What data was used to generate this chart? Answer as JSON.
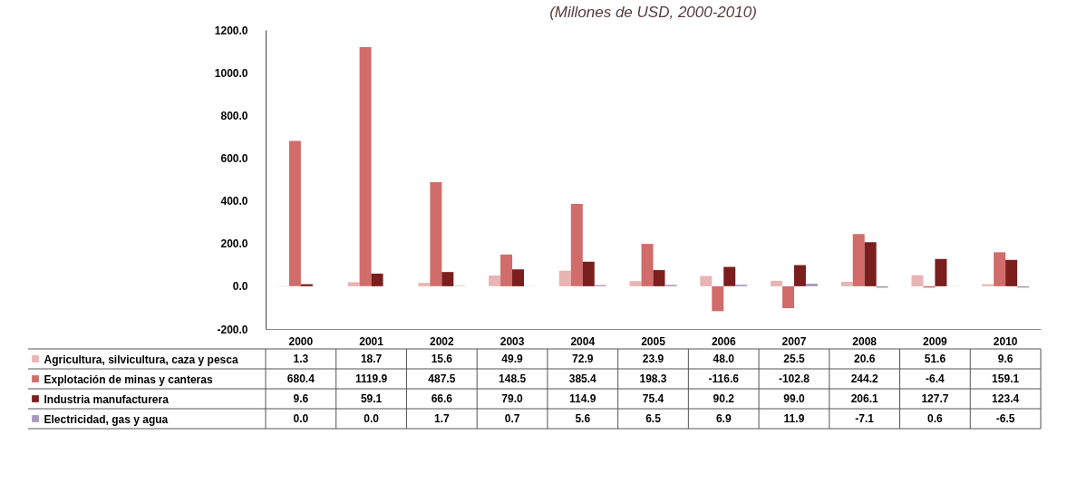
{
  "chart_data": {
    "type": "bar",
    "title": "(Millones de USD, 2000-2010)",
    "categories": [
      "2000",
      "2001",
      "2002",
      "2003",
      "2004",
      "2005",
      "2006",
      "2007",
      "2008",
      "2009",
      "2010"
    ],
    "series": [
      {
        "name": "Agricultura, silvicultura, caza y pesca",
        "color": "#e8b4b4",
        "values": [
          1.3,
          18.7,
          15.6,
          49.9,
          72.9,
          23.9,
          48.0,
          25.5,
          20.6,
          51.6,
          9.6
        ],
        "value_labels": [
          "1.3",
          "18.7",
          "15.6",
          "49.9",
          "72.9",
          "23.9",
          "48.0",
          "25.5",
          "20.6",
          "51.6",
          "9.6"
        ]
      },
      {
        "name": "Explotación de minas y canteras",
        "color": "#d06c6a",
        "values": [
          680.4,
          1119.9,
          487.5,
          148.5,
          385.4,
          198.3,
          -116.6,
          -102.8,
          244.2,
          -6.4,
          159.1
        ],
        "value_labels": [
          "680.4",
          "1119.9",
          "487.5",
          "148.5",
          "385.4",
          "198.3",
          "-116.6",
          "-102.8",
          "244.2",
          "-6.4",
          "159.1"
        ]
      },
      {
        "name": "Industria manufacturera",
        "color": "#7a1e1e",
        "values": [
          9.6,
          59.1,
          66.6,
          79.0,
          114.9,
          75.4,
          90.2,
          99.0,
          206.1,
          127.7,
          123.4
        ],
        "value_labels": [
          "9.6",
          "59.1",
          "66.6",
          "79.0",
          "114.9",
          "75.4",
          "90.2",
          "99.0",
          "206.1",
          "127.7",
          "123.4"
        ]
      },
      {
        "name": "Electricidad, gas y agua",
        "color": "#a898bc",
        "values": [
          0.0,
          0.0,
          1.7,
          0.7,
          5.6,
          6.5,
          6.9,
          11.9,
          -7.1,
          0.6,
          -6.5
        ],
        "value_labels": [
          "0.0",
          "0.0",
          "1.7",
          "0.7",
          "5.6",
          "6.5",
          "6.9",
          "11.9",
          "-7.1",
          "0.6",
          "-6.5"
        ]
      }
    ],
    "ylim": [
      -200,
      1200
    ],
    "yticks": [
      {
        "value": -200,
        "label": "-200.0"
      },
      {
        "value": 0,
        "label": "0.0"
      },
      {
        "value": 200,
        "label": "200.0"
      },
      {
        "value": 400,
        "label": "400.0"
      },
      {
        "value": 600,
        "label": "600.0"
      },
      {
        "value": 800,
        "label": "800.0"
      },
      {
        "value": 1000,
        "label": "1000.0"
      },
      {
        "value": 1200,
        "label": "1200.0"
      }
    ],
    "grid": false,
    "legend": "bottom"
  }
}
